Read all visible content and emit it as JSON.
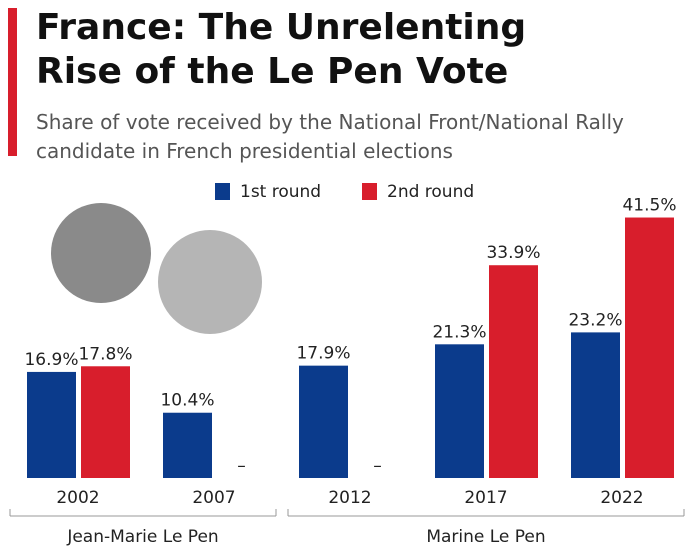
{
  "chart_data": {
    "type": "bar",
    "title": "France: The Unrelenting Rise of the Le Pen Vote",
    "subtitle": "Share of vote received by the National Front/National Rally candidate in French presidential elections",
    "categories": [
      "2002",
      "2007",
      "2012",
      "2017",
      "2022"
    ],
    "series": [
      {
        "name": "1st round",
        "color": "#0b3b8c",
        "values": [
          16.9,
          10.4,
          17.9,
          21.3,
          23.2
        ],
        "value_labels": [
          "16.9%",
          "10.4%",
          "17.9%",
          "21.3%",
          "23.2%"
        ]
      },
      {
        "name": "2nd round",
        "color": "#d81e2c",
        "values": [
          17.8,
          null,
          null,
          33.9,
          41.5
        ],
        "value_labels": [
          "17.8%",
          "–",
          "–",
          "33.9%",
          "41.5%"
        ]
      }
    ],
    "groups": [
      {
        "name": "Jean-Marie Le Pen",
        "categories": [
          "2002",
          "2007"
        ]
      },
      {
        "name": "Marine Le Pen",
        "categories": [
          "2012",
          "2017",
          "2022"
        ]
      }
    ],
    "ylim": [
      0,
      47
    ],
    "grid": false
  }
}
